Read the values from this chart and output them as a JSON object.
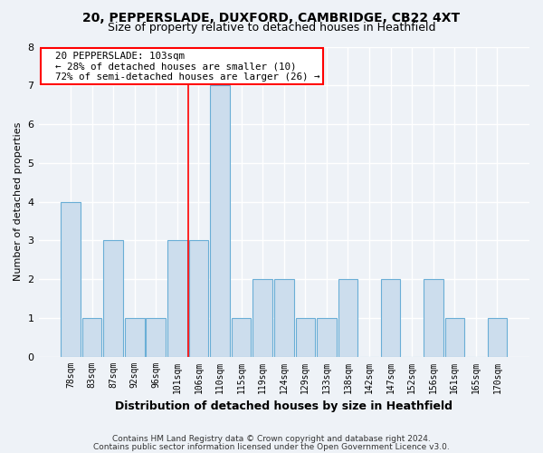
{
  "title1": "20, PEPPERSLADE, DUXFORD, CAMBRIDGE, CB22 4XT",
  "title2": "Size of property relative to detached houses in Heathfield",
  "xlabel": "Distribution of detached houses by size in Heathfield",
  "ylabel": "Number of detached properties",
  "categories": [
    "78sqm",
    "83sqm",
    "87sqm",
    "92sqm",
    "96sqm",
    "101sqm",
    "106sqm",
    "110sqm",
    "115sqm",
    "119sqm",
    "124sqm",
    "129sqm",
    "133sqm",
    "138sqm",
    "142sqm",
    "147sqm",
    "152sqm",
    "156sqm",
    "161sqm",
    "165sqm",
    "170sqm"
  ],
  "values": [
    4,
    1,
    3,
    1,
    1,
    3,
    3,
    7,
    1,
    2,
    2,
    1,
    1,
    2,
    0,
    2,
    0,
    2,
    1,
    0,
    1
  ],
  "bar_color": "#ccdded",
  "bar_edge_color": "#6aaed6",
  "red_line_x": 5.5,
  "annotation_text": "  20 PEPPERSLADE: 103sqm\n  ← 28% of detached houses are smaller (10)\n  72% of semi-detached houses are larger (26) →",
  "annotation_box_color": "white",
  "annotation_box_edge": "red",
  "ylim": [
    0,
    8
  ],
  "yticks": [
    0,
    1,
    2,
    3,
    4,
    5,
    6,
    7,
    8
  ],
  "footer1": "Contains HM Land Registry data © Crown copyright and database right 2024.",
  "footer2": "Contains public sector information licensed under the Open Government Licence v3.0.",
  "background_color": "#eef2f7",
  "plot_background": "#eef2f7",
  "grid_color": "white",
  "title1_fontsize": 10,
  "title2_fontsize": 9,
  "ylabel_fontsize": 8,
  "xlabel_fontsize": 9,
  "tick_fontsize": 8,
  "xtick_fontsize": 7
}
